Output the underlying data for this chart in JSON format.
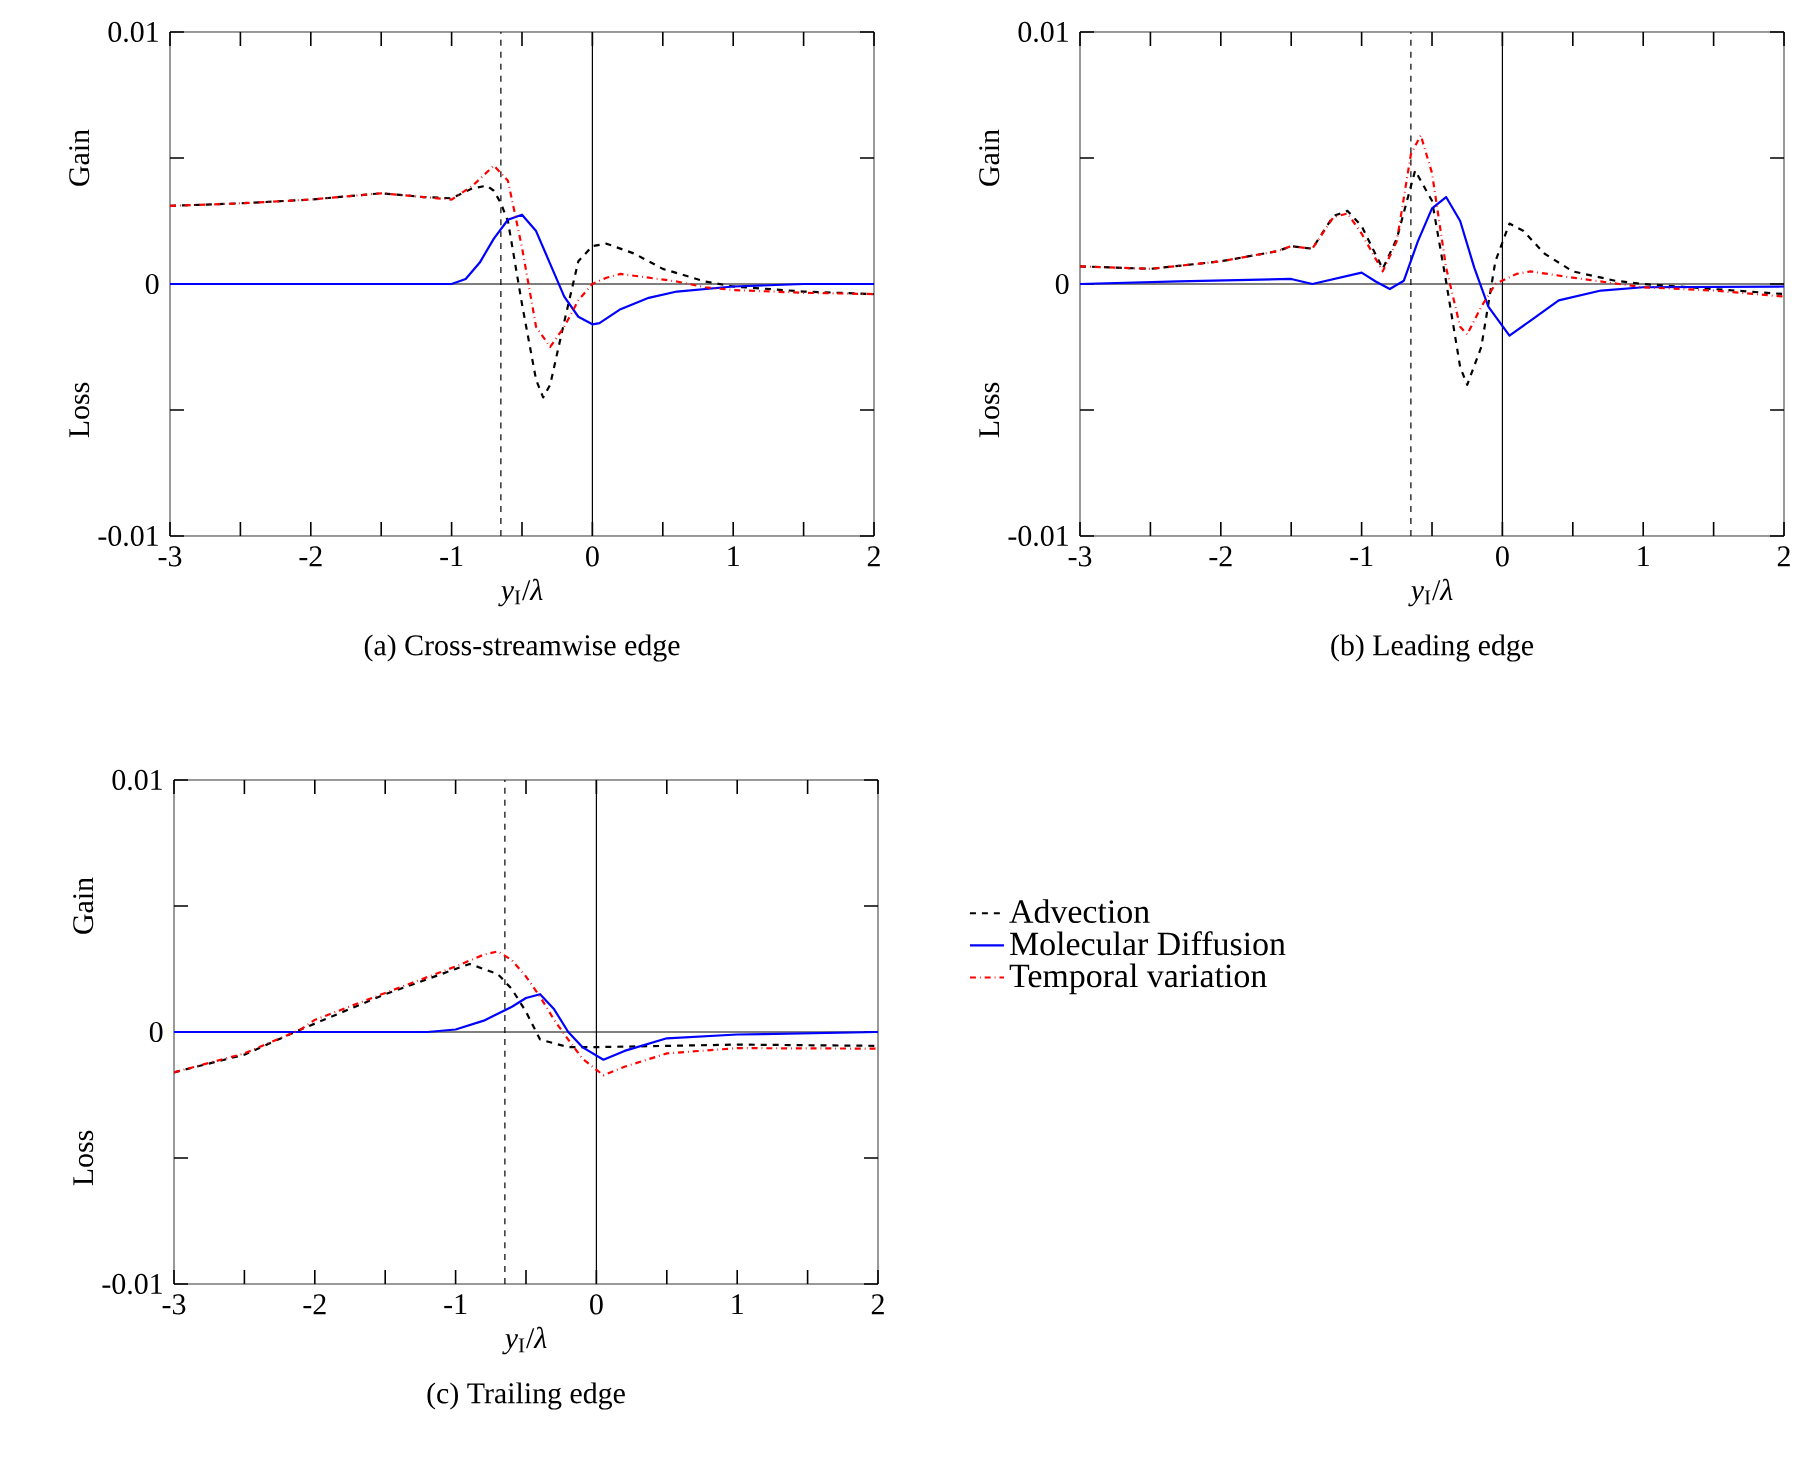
{
  "chart_data": [
    {
      "type": "line",
      "title": "(a) Cross-streamwise edge",
      "xlabel": "*y*$_{I}$/*λ*",
      "annotations": [
        "Gain",
        "Loss"
      ],
      "xlim": [
        -3,
        2
      ],
      "ylim": [
        -0.01,
        0.01
      ],
      "xticks": [
        -3,
        {
          "value": -2.5,
          "label": null
        },
        -2,
        {
          "value": -1.5,
          "label": null
        },
        -1,
        {
          "value": -0.5,
          "label": null
        },
        0,
        {
          "value": 0.5,
          "label": null
        },
        1,
        {
          "value": 1.5,
          "label": null
        },
        2
      ],
      "yticks": [
        -0.01,
        0,
        0.01
      ],
      "ref_lines": [
        {
          "axis": "x",
          "value": -0.65,
          "line_style": "dashed"
        },
        {
          "axis": "x",
          "value": 0,
          "line_style": "solid"
        },
        {
          "axis": "y",
          "value": 0,
          "line_style": "solid"
        }
      ],
      "series": [
        {
          "color": "#000000",
          "line_style": "dashed",
          "x": [
            -3,
            -2.5,
            -2,
            -1.5,
            -1.2,
            -1.0,
            -0.85,
            -0.75,
            -0.7,
            -0.65,
            -0.6,
            -0.5,
            -0.4,
            -0.35,
            -0.3,
            -0.2,
            -0.1,
            0,
            0.1,
            0.3,
            0.5,
            0.8,
            1.0,
            1.5,
            2
          ],
          "values": [
            0.0031,
            0.0032,
            0.00335,
            0.0036,
            0.00345,
            0.0034,
            0.0038,
            0.0039,
            0.0037,
            0.0032,
            0.0025,
            -0.0008,
            -0.0038,
            -0.0045,
            -0.004,
            -0.0015,
            0.0009,
            0.0015,
            0.0016,
            0.0012,
            0.0006,
            0.0001,
            -0.0001,
            -0.0003,
            -0.0004
          ]
        },
        {
          "color": "#0000ff",
          "line_style": "solid",
          "x": [
            -3,
            -2,
            -1.0,
            -0.9,
            -0.8,
            -0.7,
            -0.6,
            -0.5,
            -0.4,
            -0.3,
            -0.2,
            -0.1,
            0,
            0.05,
            0.2,
            0.4,
            0.6,
            1.0,
            1.5,
            2
          ],
          "values": [
            0,
            0,
            0,
            0.0002,
            0.00085,
            0.0018,
            0.00255,
            0.00275,
            0.0021,
            0.0008,
            -0.0005,
            -0.0013,
            -0.0016,
            -0.00155,
            -0.001,
            -0.00055,
            -0.0003,
            -0.0001,
            0,
            0
          ]
        },
        {
          "color": "#ff0000",
          "line_style": "dashdot",
          "x": [
            -3,
            -2.5,
            -2,
            -1.5,
            -1.2,
            -1.0,
            -0.85,
            -0.7,
            -0.6,
            -0.5,
            -0.4,
            -0.3,
            -0.2,
            -0.1,
            0,
            0.1,
            0.2,
            0.4,
            0.6,
            0.8,
            1.0,
            1.5,
            2
          ],
          "values": [
            0.0031,
            0.0032,
            0.00335,
            0.0036,
            0.00345,
            0.00335,
            0.0039,
            0.0047,
            0.0041,
            0.00145,
            -0.0017,
            -0.0025,
            -0.0017,
            -0.00065,
            0,
            0.00025,
            0.0004,
            0.00025,
            0.0001,
            -0.00013,
            -0.00024,
            -0.00035,
            -0.0004
          ]
        }
      ]
    },
    {
      "type": "line",
      "title": "(b) Leading edge",
      "xlabel": "*y*$_{I}$/*λ*",
      "annotations": [
        "Gain",
        "Loss"
      ],
      "xlim": [
        -3,
        2
      ],
      "ylim": [
        -0.01,
        0.01
      ],
      "xticks": [
        -3,
        {
          "value": -2.5,
          "label": null
        },
        -2,
        {
          "value": -1.5,
          "label": null
        },
        -1,
        {
          "value": -0.5,
          "label": null
        },
        0,
        {
          "value": 0.5,
          "label": null
        },
        1,
        {
          "value": 1.5,
          "label": null
        },
        2
      ],
      "yticks": [
        -0.01,
        0,
        0.01
      ],
      "ref_lines": [
        {
          "axis": "x",
          "value": -0.65,
          "line_style": "dashed"
        },
        {
          "axis": "x",
          "value": 0,
          "line_style": "solid"
        },
        {
          "axis": "y",
          "value": 0,
          "line_style": "solid"
        }
      ],
      "series": [
        {
          "color": "#000000",
          "line_style": "dashed",
          "x": [
            -3,
            -2.5,
            -2,
            -1.6,
            -1.5,
            -1.35,
            -1.2,
            -1.1,
            -1.0,
            -0.85,
            -0.75,
            -0.62,
            -0.5,
            -0.4,
            -0.3,
            -0.25,
            -0.15,
            -0.05,
            0.05,
            0.15,
            0.3,
            0.5,
            0.8,
            1.0,
            1.5,
            2
          ],
          "values": [
            0.0007,
            0.0006,
            0.0009,
            0.0013,
            0.0015,
            0.0014,
            0.0027,
            0.0029,
            0.0023,
            0.0006,
            0.0018,
            0.0045,
            0.0033,
            0.0001,
            -0.0033,
            -0.004,
            -0.0025,
            0.0009,
            0.0024,
            0.0021,
            0.0012,
            0.0005,
            0.00013,
            0,
            -0.0002,
            -0.0004
          ]
        },
        {
          "color": "#0000ff",
          "line_style": "solid",
          "x": [
            -3,
            -2.3,
            -1.5,
            -1.35,
            -1.0,
            -0.9,
            -0.8,
            -0.7,
            -0.6,
            -0.5,
            -0.4,
            -0.3,
            -0.2,
            -0.1,
            0.05,
            0.2,
            0.4,
            0.7,
            1.0,
            2
          ],
          "values": [
            0,
            0.0001,
            0.0002,
            0,
            0.00045,
            0.0001,
            -0.0002,
            0.00013,
            0.0017,
            0.003,
            0.00345,
            0.0025,
            0.00065,
            -0.0009,
            -0.00205,
            -0.00145,
            -0.00065,
            -0.00026,
            -0.00013,
            -0.0001
          ]
        },
        {
          "color": "#ff0000",
          "line_style": "dashdot",
          "x": [
            -3,
            -2.5,
            -2,
            -1.6,
            -1.5,
            -1.35,
            -1.2,
            -1.1,
            -1.0,
            -0.85,
            -0.75,
            -0.65,
            -0.58,
            -0.5,
            -0.4,
            -0.3,
            -0.25,
            -0.15,
            -0.05,
            0.1,
            0.2,
            0.5,
            1.0,
            1.5,
            2
          ],
          "values": [
            0.0007,
            0.0006,
            0.0009,
            0.0013,
            0.0015,
            0.0014,
            0.00265,
            0.0028,
            0.002,
            0.0005,
            0.0017,
            0.00515,
            0.0059,
            0.0044,
            0.00065,
            -0.0017,
            -0.002,
            -0.0009,
            0,
            0.0004,
            0.0005,
            0.00025,
            -0.00013,
            -0.00026,
            -0.0005
          ]
        }
      ]
    },
    {
      "type": "line",
      "title": "(c) Trailing edge",
      "xlabel": "*y*$_{I}$/*λ*",
      "annotations": [
        "Gain",
        "Loss"
      ],
      "xlim": [
        -3,
        2
      ],
      "ylim": [
        -0.01,
        0.01
      ],
      "legend": "right",
      "xticks": [
        -3,
        {
          "value": -2.5,
          "label": null
        },
        -2,
        {
          "value": -1.5,
          "label": null
        },
        -1,
        {
          "value": -0.5,
          "label": null
        },
        0,
        {
          "value": 0.5,
          "label": null
        },
        1,
        {
          "value": 1.5,
          "label": null
        },
        2
      ],
      "yticks": [
        -0.01,
        0,
        0.01
      ],
      "ref_lines": [
        {
          "axis": "x",
          "value": -0.65,
          "line_style": "dashed"
        },
        {
          "axis": "x",
          "value": 0,
          "line_style": "solid"
        },
        {
          "axis": "y",
          "value": 0,
          "line_style": "solid"
        }
      ],
      "series": [
        {
          "name": "Advection",
          "color": "#000000",
          "line_style": "dashed",
          "x": [
            -3,
            -2.5,
            -2.1,
            -1.5,
            -1.0,
            -0.9,
            -0.7,
            -0.6,
            -0.5,
            -0.4,
            -0.3,
            -0.2,
            0,
            0.5,
            1.0,
            2
          ],
          "values": [
            -0.0016,
            -0.0009,
            0.0001,
            0.0015,
            0.0025,
            0.0027,
            0.0023,
            0.0017,
            0.0008,
            -0.0003,
            -0.00045,
            -0.0006,
            -0.0006,
            -0.00055,
            -0.0005,
            -0.00055
          ]
        },
        {
          "name": "Molecular Diffusion",
          "color": "#0000ff",
          "line_style": "solid",
          "x": [
            -3,
            -1.2,
            -1.0,
            -0.8,
            -0.6,
            -0.5,
            -0.4,
            -0.3,
            -0.2,
            -0.1,
            0.05,
            0.2,
            0.5,
            1.0,
            2
          ],
          "values": [
            0,
            0,
            0.0001,
            0.00045,
            0.001,
            0.00135,
            0.0015,
            0.0009,
            0,
            -0.0006,
            -0.0011,
            -0.00075,
            -0.00025,
            -0.0001,
            0
          ]
        },
        {
          "name": "Temporal variation",
          "color": "#ff0000",
          "line_style": "dashdot",
          "x": [
            -3,
            -2.5,
            -2.1,
            -2,
            -1.5,
            -1.0,
            -0.8,
            -0.7,
            -0.6,
            -0.5,
            -0.4,
            -0.3,
            -0.2,
            -0.1,
            0.05,
            0.2,
            0.5,
            1.0,
            2
          ],
          "values": [
            -0.0016,
            -0.00085,
            0.0001,
            0.00048,
            0.00155,
            0.0026,
            0.00307,
            0.0032,
            0.00285,
            0.0022,
            0.0014,
            0.00048,
            -0.0003,
            -0.00105,
            -0.00172,
            -0.00138,
            -0.00085,
            -0.00064,
            -0.00066
          ]
        }
      ]
    }
  ]
}
